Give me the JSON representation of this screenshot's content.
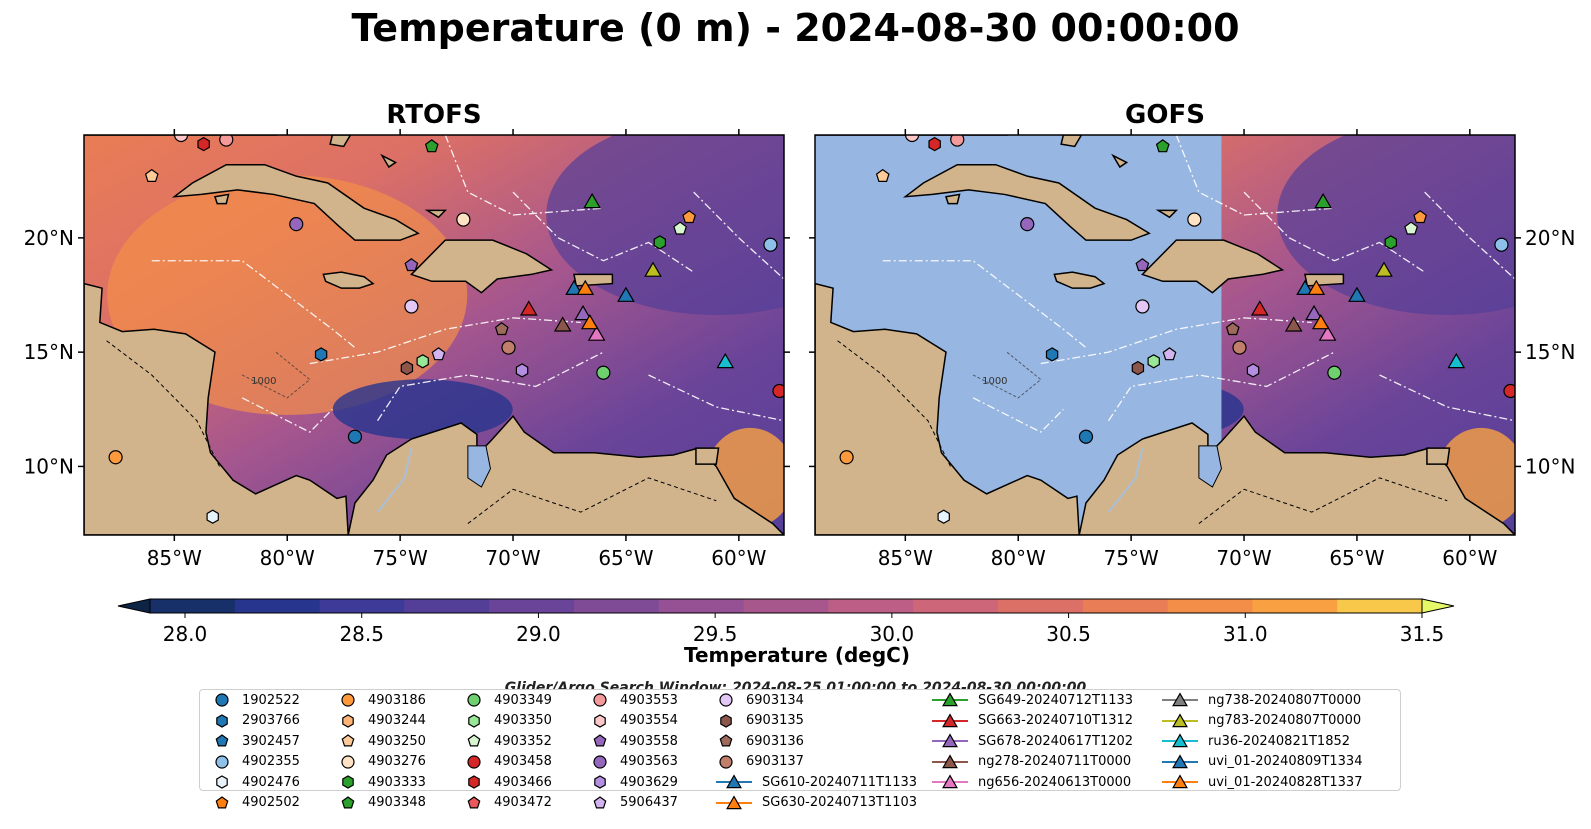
{
  "title": "Temperature (0 m) - 2024-08-30 00:00:00",
  "panels": [
    {
      "name": "RTOFS",
      "mask_west_of_lon": null
    },
    {
      "name": "GOFS",
      "mask_west_of_lon": -71
    }
  ],
  "map_extent": {
    "lon": [
      -89,
      -58
    ],
    "lat": [
      7,
      24.5
    ]
  },
  "lon_ticks": [
    {
      "value": -85,
      "label": "85°W"
    },
    {
      "value": -80,
      "label": "80°W"
    },
    {
      "value": -75,
      "label": "75°W"
    },
    {
      "value": -70,
      "label": "70°W"
    },
    {
      "value": -65,
      "label": "65°W"
    },
    {
      "value": -60,
      "label": "60°W"
    }
  ],
  "lat_ticks": [
    {
      "value": 20,
      "label": "20°N"
    },
    {
      "value": 15,
      "label": "15°N"
    },
    {
      "value": 10,
      "label": "10°N"
    }
  ],
  "bathymetry_label": "1000",
  "colorbar": {
    "label": "Temperature (degC)",
    "range": [
      28.0,
      31.5
    ],
    "ticks": [
      "28.0",
      "28.5",
      "29.0",
      "29.5",
      "30.0",
      "30.5",
      "31.0",
      "31.5"
    ],
    "colors": [
      "#0d2444",
      "#17306a",
      "#27358e",
      "#3e3b98",
      "#543f98",
      "#6a4499",
      "#804b96",
      "#955193",
      "#a8578d",
      "#bc5e86",
      "#cd6679",
      "#dc7066",
      "#e97d55",
      "#f38e48",
      "#f9a142",
      "#f7c84a",
      "#e5f867"
    ]
  },
  "colors": {
    "land": "#d2b48c",
    "masked_ocean": "#97b6e1",
    "river": "#a9bfd6"
  },
  "search_window": "Glider/Argo Search Window: 2024-08-25 01:00:00 to 2024-08-30 00:00:00",
  "legend": [
    {
      "label": "1902522",
      "marker": "circle",
      "color": "#1f77b4"
    },
    {
      "label": "2903766",
      "marker": "hexagon",
      "color": "#1f77b4"
    },
    {
      "label": "3902457",
      "marker": "pentagon",
      "color": "#1f77b4"
    },
    {
      "label": "4902355",
      "marker": "circle",
      "color": "#8ec1ea"
    },
    {
      "label": "4902476",
      "marker": "hexagon",
      "color": "#e8f2fb"
    },
    {
      "label": "4902502",
      "marker": "pentagon",
      "color": "#ff7f0e"
    },
    {
      "label": "4903186",
      "marker": "circle",
      "color": "#ff9a3c"
    },
    {
      "label": "4903244",
      "marker": "hexagon",
      "color": "#ffb476"
    },
    {
      "label": "4903250",
      "marker": "pentagon",
      "color": "#ffcc99"
    },
    {
      "label": "4903276",
      "marker": "circle",
      "color": "#ffe2c4"
    },
    {
      "label": "4903333",
      "marker": "hexagon",
      "color": "#2ca02c"
    },
    {
      "label": "4903348",
      "marker": "pentagon",
      "color": "#2ca02c"
    },
    {
      "label": "4903349",
      "marker": "circle",
      "color": "#6fd06f"
    },
    {
      "label": "4903350",
      "marker": "hexagon",
      "color": "#98e698"
    },
    {
      "label": "4903352",
      "marker": "pentagon",
      "color": "#d8f7d0"
    },
    {
      "label": "4903458",
      "marker": "circle",
      "color": "#d62728"
    },
    {
      "label": "4903466",
      "marker": "hexagon",
      "color": "#d62728"
    },
    {
      "label": "4903472",
      "marker": "pentagon",
      "color": "#e9585c"
    },
    {
      "label": "4903553",
      "marker": "circle",
      "color": "#f59a9b"
    },
    {
      "label": "4903554",
      "marker": "hexagon",
      "color": "#ffc7c7"
    },
    {
      "label": "4903558",
      "marker": "pentagon",
      "color": "#9467bd"
    },
    {
      "label": "4903563",
      "marker": "circle",
      "color": "#9467bd"
    },
    {
      "label": "4903629",
      "marker": "hexagon",
      "color": "#b48ee0"
    },
    {
      "label": "5906437",
      "marker": "pentagon",
      "color": "#d2b4f0"
    },
    {
      "label": "6903134",
      "marker": "circle",
      "color": "#e3c8f5"
    },
    {
      "label": "6903135",
      "marker": "hexagon",
      "color": "#8c564b"
    },
    {
      "label": "6903136",
      "marker": "pentagon",
      "color": "#9e6a5c"
    },
    {
      "label": "6903137",
      "marker": "circle",
      "color": "#c07e6b"
    },
    {
      "label": "SG610-20240711T1133",
      "marker": "triangle",
      "color": "#1f77b4"
    },
    {
      "label": "SG630-20240713T1103",
      "marker": "triangle",
      "color": "#ff7f0e"
    },
    {
      "label": "SG649-20240712T1133",
      "marker": "triangle",
      "color": "#2ca02c"
    },
    {
      "label": "SG663-20240710T1312",
      "marker": "triangle",
      "color": "#d62728"
    },
    {
      "label": "SG678-20240617T1202",
      "marker": "triangle",
      "color": "#9467bd"
    },
    {
      "label": "ng278-20240711T0000",
      "marker": "triangle",
      "color": "#8c564b"
    },
    {
      "label": "ng656-20240613T0000",
      "marker": "triangle",
      "color": "#e377c2"
    },
    {
      "label": "ng738-20240807T0000",
      "marker": "triangle",
      "color": "#7f7f7f"
    },
    {
      "label": "ng783-20240807T0000",
      "marker": "triangle",
      "color": "#bcbd22"
    },
    {
      "label": "ru36-20240821T1852",
      "marker": "triangle",
      "color": "#17becf"
    },
    {
      "label": "uvi_01-20240809T1334",
      "marker": "triangle",
      "color": "#1f77b4"
    },
    {
      "label": "uvi_01-20240828T1337",
      "marker": "triangle",
      "color": "#ff7f0e"
    }
  ],
  "observations": [
    {
      "lon": -84.7,
      "lat": 24.5,
      "marker": "circle",
      "color": "#ffc7c7"
    },
    {
      "lon": -83.7,
      "lat": 24.1,
      "marker": "hexagon",
      "color": "#d62728"
    },
    {
      "lon": -82.7,
      "lat": 24.3,
      "marker": "circle",
      "color": "#f59a9b"
    },
    {
      "lon": -86.0,
      "lat": 22.7,
      "marker": "pentagon",
      "color": "#ffcc99"
    },
    {
      "lon": -79.6,
      "lat": 20.6,
      "marker": "circle",
      "color": "#9467bd"
    },
    {
      "lon": -73.6,
      "lat": 24.0,
      "marker": "pentagon",
      "color": "#2ca02c"
    },
    {
      "lon": -72.2,
      "lat": 20.8,
      "marker": "circle",
      "color": "#ffe2c4"
    },
    {
      "lon": -74.5,
      "lat": 18.8,
      "marker": "pentagon",
      "color": "#9467bd"
    },
    {
      "lon": -74.5,
      "lat": 17.0,
      "marker": "circle",
      "color": "#e3c8f5"
    },
    {
      "lon": -78.5,
      "lat": 14.9,
      "marker": "hexagon",
      "color": "#1f77b4"
    },
    {
      "lon": -74.0,
      "lat": 14.6,
      "marker": "hexagon",
      "color": "#98e698"
    },
    {
      "lon": -73.3,
      "lat": 14.9,
      "marker": "pentagon",
      "color": "#d2b4f0"
    },
    {
      "lon": -74.7,
      "lat": 14.3,
      "marker": "hexagon",
      "color": "#8c564b"
    },
    {
      "lon": -70.5,
      "lat": 16.0,
      "marker": "pentagon",
      "color": "#9e6a5c"
    },
    {
      "lon": -70.2,
      "lat": 15.2,
      "marker": "circle",
      "color": "#c07e6b"
    },
    {
      "lon": -69.6,
      "lat": 14.2,
      "marker": "hexagon",
      "color": "#b48ee0"
    },
    {
      "lon": -77.0,
      "lat": 11.3,
      "marker": "circle",
      "color": "#1f77b4"
    },
    {
      "lon": -87.6,
      "lat": 10.4,
      "marker": "circle",
      "color": "#ff9a3c"
    },
    {
      "lon": -83.3,
      "lat": 7.8,
      "marker": "hexagon",
      "color": "#e8f2fb"
    },
    {
      "lon": -66.0,
      "lat": 14.1,
      "marker": "circle",
      "color": "#6fd06f"
    },
    {
      "lon": -62.2,
      "lat": 20.9,
      "marker": "pentagon",
      "color": "#ff9a3c"
    },
    {
      "lon": -62.6,
      "lat": 20.4,
      "marker": "pentagon",
      "color": "#d8f7d0"
    },
    {
      "lon": -63.5,
      "lat": 19.8,
      "marker": "hexagon",
      "color": "#2ca02c"
    },
    {
      "lon": -58.6,
      "lat": 19.7,
      "marker": "circle",
      "color": "#8ec1ea"
    },
    {
      "lon": -58.2,
      "lat": 13.3,
      "marker": "circle",
      "color": "#d62728"
    }
  ],
  "gliders": [
    {
      "lon": -66.5,
      "lat": 21.6,
      "color": "#2ca02c"
    },
    {
      "lon": -69.3,
      "lat": 16.9,
      "color": "#d62728"
    },
    {
      "lon": -67.8,
      "lat": 16.2,
      "color": "#8c564b"
    },
    {
      "lon": -66.9,
      "lat": 16.7,
      "color": "#9467bd"
    },
    {
      "lon": -66.3,
      "lat": 15.8,
      "color": "#e377c2"
    },
    {
      "lon": -66.6,
      "lat": 16.3,
      "color": "#ff7f0e"
    },
    {
      "lon": -65.0,
      "lat": 17.5,
      "color": "#1f77b4"
    },
    {
      "lon": -63.8,
      "lat": 18.6,
      "color": "#bcbd22"
    },
    {
      "lon": -60.6,
      "lat": 14.6,
      "color": "#17becf"
    },
    {
      "lon": -67.3,
      "lat": 17.8,
      "color": "#1f77b4"
    },
    {
      "lon": -66.8,
      "lat": 17.8,
      "color": "#ff7f0e"
    }
  ]
}
